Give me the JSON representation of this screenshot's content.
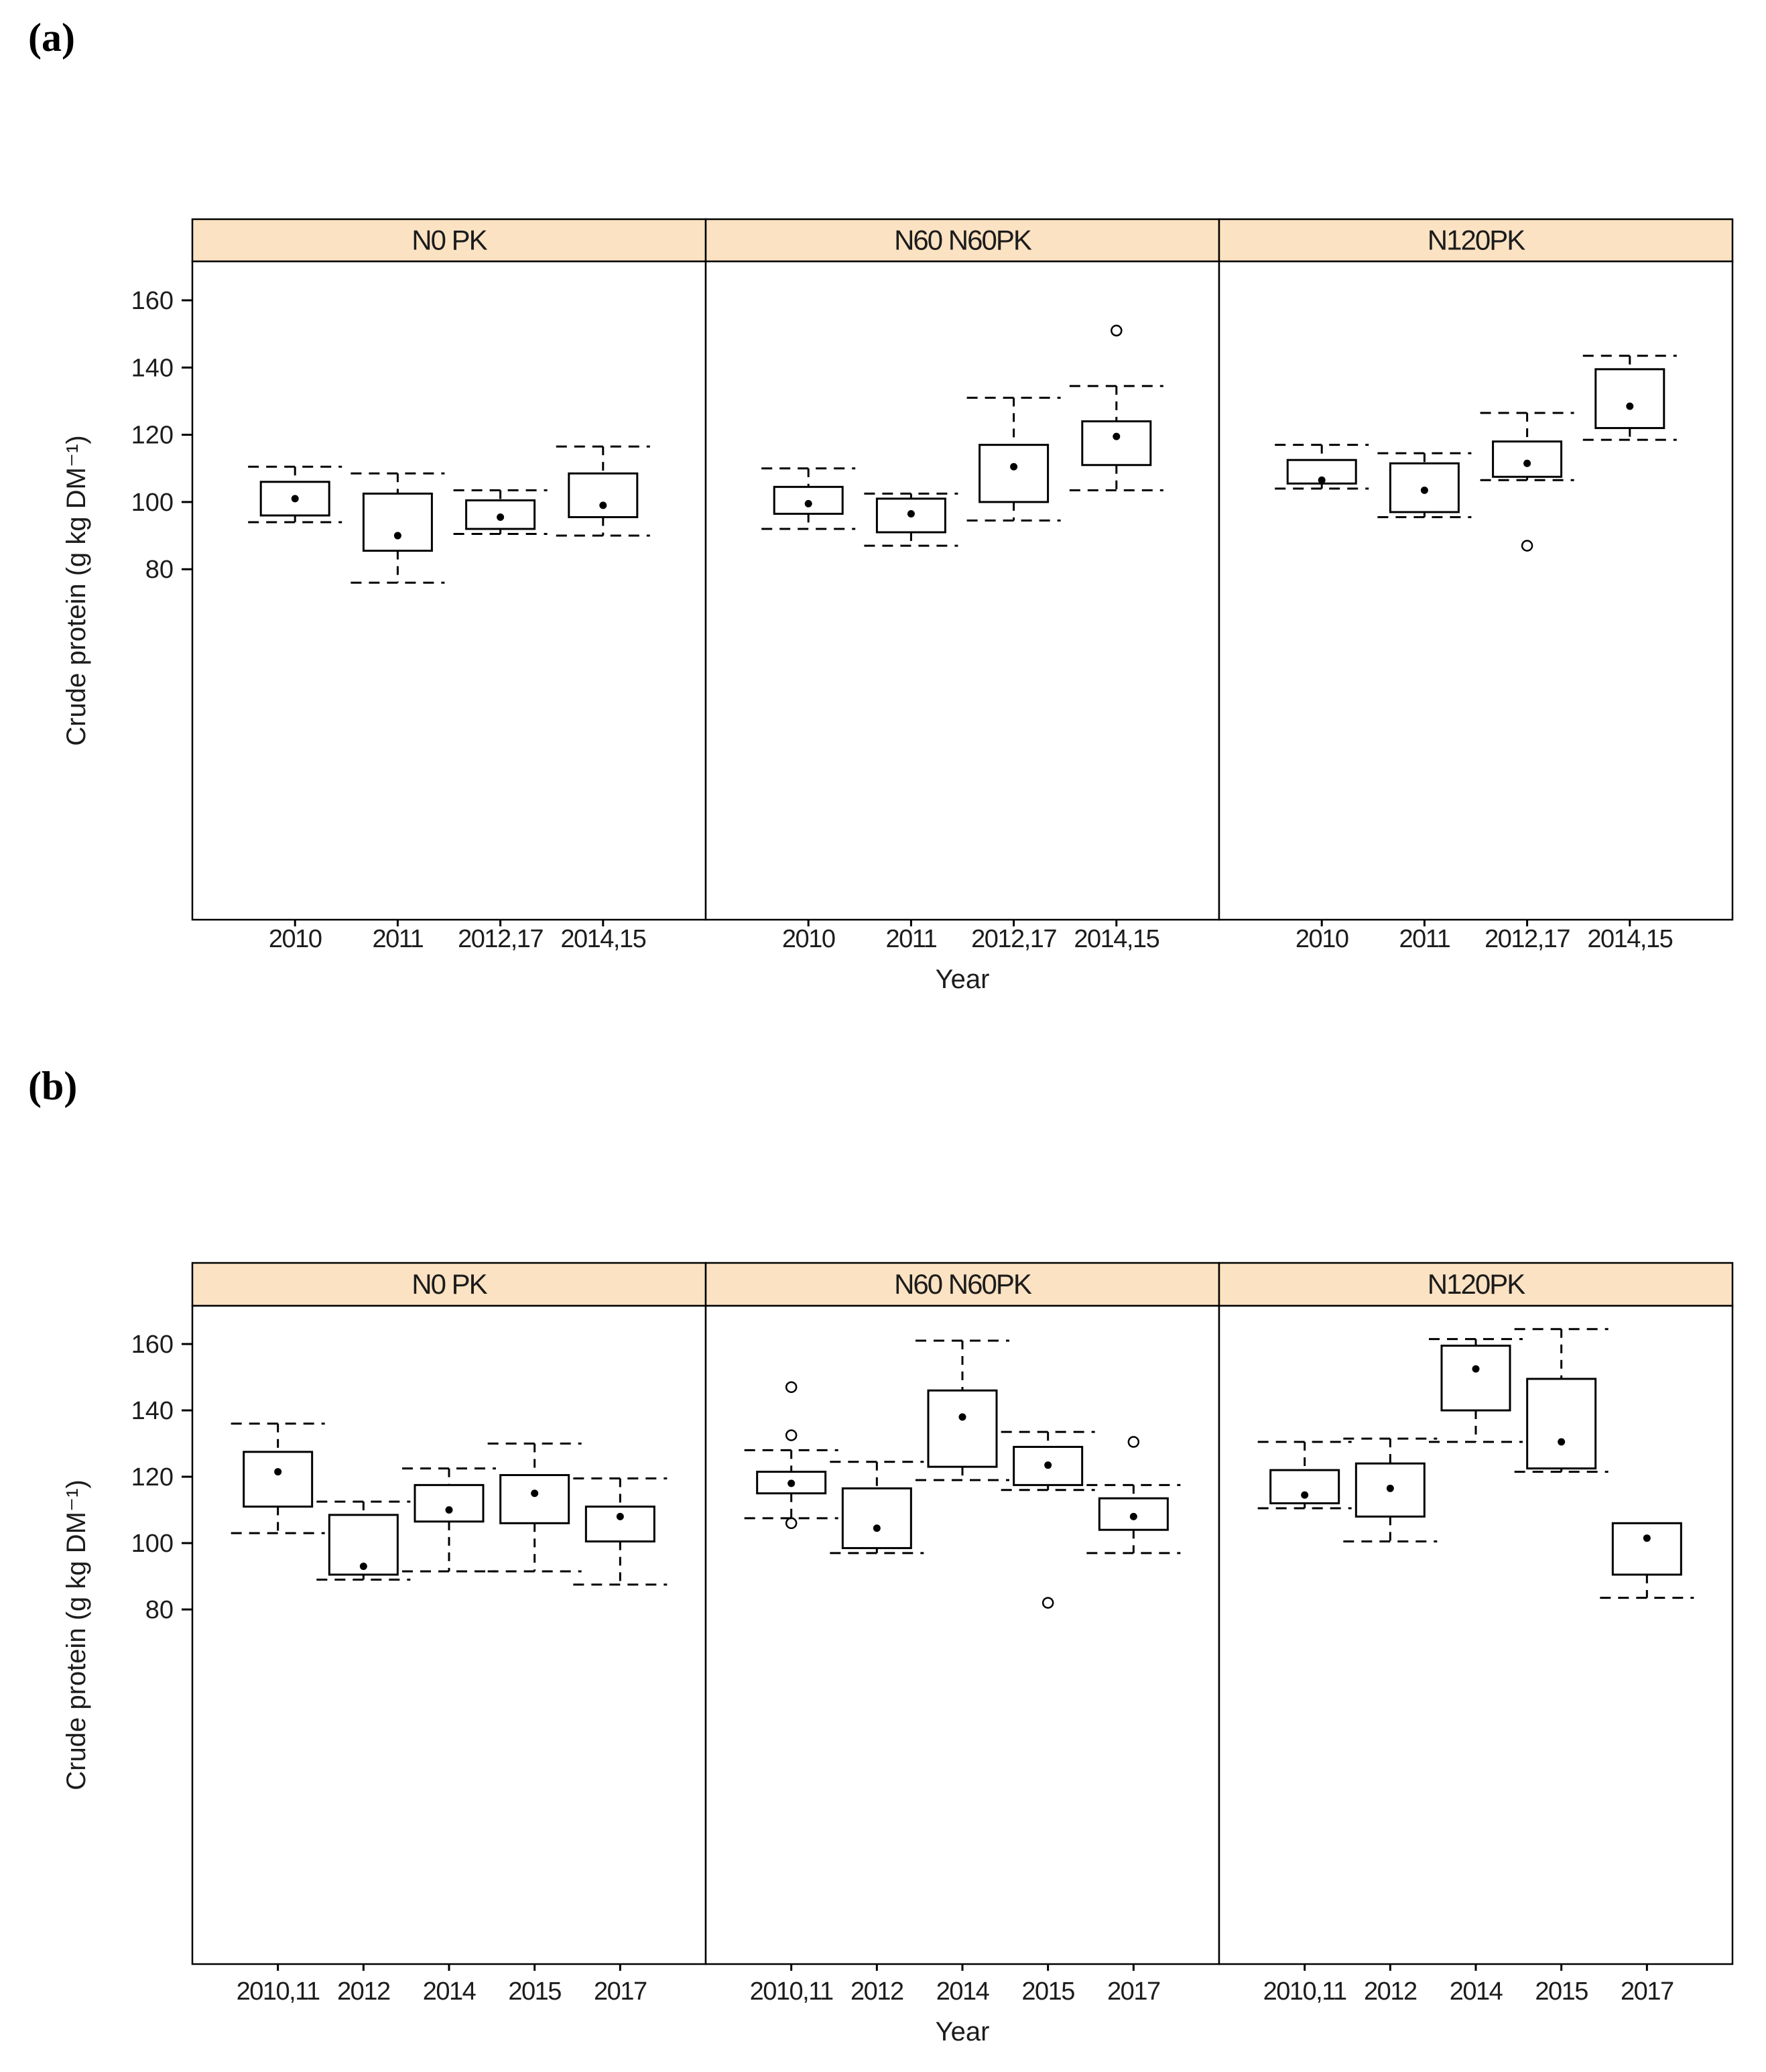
{
  "colors": {
    "strip_fill": "#FBE2C2",
    "line": "#000000",
    "text": "#1C1C1C"
  },
  "chart_data": [
    {
      "type": "boxplot",
      "panel_label": "(a)",
      "xlabel": "Year",
      "ylabel": "Crude protein (g kg DM⁻¹)",
      "yticks": [
        80,
        100,
        120,
        140,
        160
      ],
      "ylim": [
        72,
        172
      ],
      "grid": "off",
      "facets": [
        {
          "label": "N0  PK",
          "categories": [
            "2010",
            "2011",
            "2012,17",
            "2014,15"
          ],
          "boxes": [
            {
              "low": 94,
              "q1": 96,
              "mean": 101,
              "q3": 106,
              "high": 110.5,
              "outliers": []
            },
            {
              "low": 76,
              "q1": 85.5,
              "mean": 90,
              "q3": 102.5,
              "high": 108.5,
              "outliers": []
            },
            {
              "low": 90.5,
              "q1": 92,
              "mean": 95.5,
              "q3": 100.5,
              "high": 103.5,
              "outliers": []
            },
            {
              "low": 90,
              "q1": 95.5,
              "mean": 99,
              "q3": 108.5,
              "high": 116.5,
              "outliers": []
            }
          ]
        },
        {
          "label": "N60  N60PK",
          "categories": [
            "2010",
            "2011",
            "2012,17",
            "2014,15"
          ],
          "boxes": [
            {
              "low": 92,
              "q1": 96.5,
              "mean": 99.5,
              "q3": 104.5,
              "high": 110,
              "outliers": []
            },
            {
              "low": 87,
              "q1": 91,
              "mean": 96.5,
              "q3": 101,
              "high": 102.5,
              "outliers": []
            },
            {
              "low": 94.5,
              "q1": 100,
              "mean": 110.5,
              "q3": 117,
              "high": 131,
              "outliers": []
            },
            {
              "low": 103.5,
              "q1": 111,
              "mean": 119.5,
              "q3": 124,
              "high": 134.5,
              "outliers": [
                151
              ]
            }
          ]
        },
        {
          "label": "N120PK",
          "categories": [
            "2010",
            "2011",
            "2012,17",
            "2014,15"
          ],
          "boxes": [
            {
              "low": 104,
              "q1": 105.5,
              "mean": 106.5,
              "q3": 112.5,
              "high": 117,
              "outliers": []
            },
            {
              "low": 95.5,
              "q1": 97,
              "mean": 103.5,
              "q3": 111.5,
              "high": 114.5,
              "outliers": []
            },
            {
              "low": 106.5,
              "q1": 107.5,
              "mean": 111.5,
              "q3": 118,
              "high": 126.5,
              "outliers": [
                87
              ]
            },
            {
              "low": 118.5,
              "q1": 122,
              "mean": 128.5,
              "q3": 139.5,
              "high": 143.5,
              "outliers": []
            }
          ]
        }
      ]
    },
    {
      "type": "boxplot",
      "panel_label": "(b)",
      "xlabel": "Year",
      "ylabel": "Crude protein (g kg DM⁻¹)",
      "yticks": [
        80,
        100,
        120,
        140,
        160
      ],
      "ylim": [
        72,
        172
      ],
      "grid": "off",
      "facets": [
        {
          "label": "N0  PK",
          "categories": [
            "2010,11",
            "2012",
            "2014",
            "2015",
            "2017"
          ],
          "boxes": [
            {
              "low": 103,
              "q1": 111,
              "mean": 121.5,
              "q3": 127.5,
              "high": 136,
              "outliers": []
            },
            {
              "low": 89,
              "q1": 90.5,
              "mean": 93,
              "q3": 108.5,
              "high": 112.5,
              "outliers": []
            },
            {
              "low": 91.5,
              "q1": 106.5,
              "mean": 110,
              "q3": 117.5,
              "high": 122.5,
              "outliers": []
            },
            {
              "low": 91.5,
              "q1": 106,
              "mean": 115,
              "q3": 120.5,
              "high": 130,
              "outliers": []
            },
            {
              "low": 87.5,
              "q1": 100.5,
              "mean": 108,
              "q3": 111,
              "high": 119.5,
              "outliers": []
            }
          ]
        },
        {
          "label": "N60  N60PK",
          "categories": [
            "2010,11",
            "2012",
            "2014",
            "2015",
            "2017"
          ],
          "boxes": [
            {
              "low": 107.5,
              "q1": 115,
              "mean": 118,
              "q3": 121.5,
              "high": 128,
              "outliers": [
                147,
                132.5,
                106
              ]
            },
            {
              "low": 97,
              "q1": 98.5,
              "mean": 104.5,
              "q3": 116.5,
              "high": 124.5,
              "outliers": []
            },
            {
              "low": 119,
              "q1": 123,
              "mean": 138,
              "q3": 146,
              "high": 161,
              "outliers": []
            },
            {
              "low": 116,
              "q1": 117.5,
              "mean": 123.5,
              "q3": 129,
              "high": 133.5,
              "outliers": [
                82
              ]
            },
            {
              "low": 97,
              "q1": 104,
              "mean": 108,
              "q3": 113.5,
              "high": 117.5,
              "outliers": [
                130.5
              ]
            }
          ]
        },
        {
          "label": "N120PK",
          "categories": [
            "2010,11",
            "2012",
            "2014",
            "2015",
            "2017"
          ],
          "boxes": [
            {
              "low": 110.5,
              "q1": 112,
              "mean": 114.5,
              "q3": 122,
              "high": 130.5,
              "outliers": []
            },
            {
              "low": 100.5,
              "q1": 108,
              "mean": 116.5,
              "q3": 124,
              "high": 131.5,
              "outliers": []
            },
            {
              "low": 130.5,
              "q1": 140,
              "mean": 152.5,
              "q3": 159.5,
              "high": 161.5,
              "outliers": []
            },
            {
              "low": 121.5,
              "q1": 122.5,
              "mean": 130.5,
              "q3": 149.5,
              "high": 164.5,
              "outliers": []
            },
            {
              "low": 83.5,
              "q1": 90.5,
              "mean": 101.5,
              "q3": 106,
              "high": 106,
              "outliers": []
            }
          ]
        }
      ]
    }
  ]
}
